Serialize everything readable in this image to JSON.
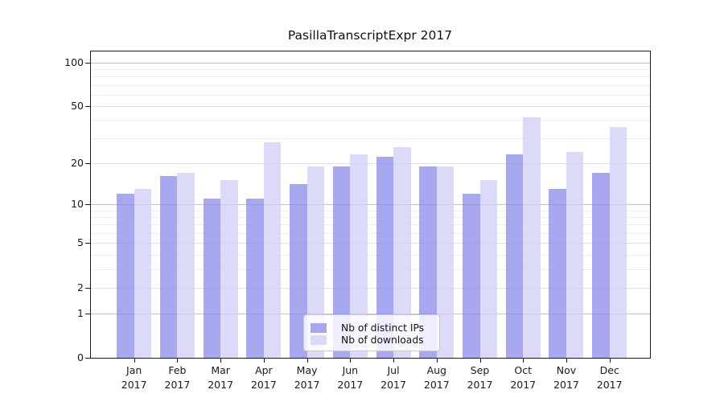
{
  "title": "PasillaTranscriptExpr 2017",
  "chart_data": {
    "type": "bar",
    "title": "PasillaTranscriptExpr 2017",
    "categories": [
      "Jan",
      "Feb",
      "Mar",
      "Apr",
      "May",
      "Jun",
      "Jul",
      "Aug",
      "Sep",
      "Oct",
      "Nov",
      "Dec"
    ],
    "year_label": "2017",
    "series": [
      {
        "name": "Nb of distinct IPs",
        "color": "rgba(134,134,236,0.72)",
        "values": [
          12,
          16,
          11,
          11,
          14,
          19,
          22,
          19,
          12,
          23,
          13,
          17
        ]
      },
      {
        "name": "Nb of downloads",
        "color": "rgba(205,205,247,0.72)",
        "values": [
          13,
          17,
          15,
          28,
          19,
          23,
          26,
          19,
          15,
          42,
          24,
          36
        ]
      }
    ],
    "y_scale": "log1p",
    "y_ticks": [
      0,
      1,
      2,
      5,
      10,
      20,
      50,
      100
    ],
    "y_decade_ticks": [
      1,
      10,
      100
    ],
    "y_minor_ticks": [
      3,
      4,
      6,
      7,
      8,
      9,
      30,
      40,
      60,
      70,
      80,
      90
    ],
    "ylim": [
      0,
      120
    ],
    "grid": "on",
    "legend_position": "bottom-center"
  },
  "legend": {
    "items": [
      {
        "label": "Nb of distinct IPs"
      },
      {
        "label": "Nb of downloads"
      }
    ]
  }
}
